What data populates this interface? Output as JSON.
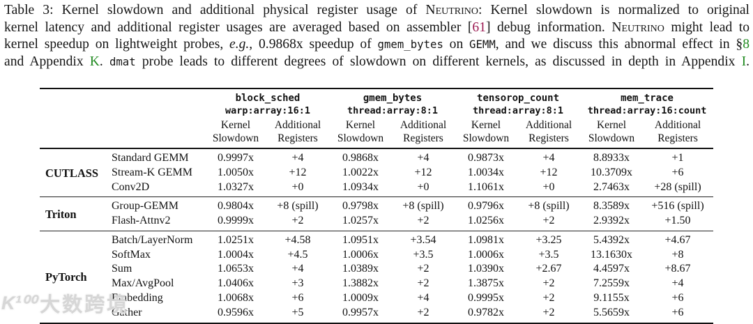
{
  "colors": {
    "citation": "#9c1a52",
    "reference": "#228B22"
  },
  "caption": {
    "lines": [
      [
        {
          "t": "Table 3: Kernel slowdown and additional physical register usage of ",
          "s": "plain"
        },
        {
          "t": "Neutrino",
          "s": "sc"
        },
        {
          "t": ": Kernel slowdown is normalized to original",
          "s": "plain"
        }
      ],
      [
        {
          "t": "kernel latency and additional register usages are averaged based on assembler [",
          "s": "plain"
        },
        {
          "t": "61",
          "s": "cite"
        },
        {
          "t": "] debug information. ",
          "s": "plain"
        },
        {
          "t": "Neutrino",
          "s": "sc"
        },
        {
          "t": " might lead to",
          "s": "plain"
        }
      ],
      [
        {
          "t": "kernel speedup on lightweight probes, ",
          "s": "plain"
        },
        {
          "t": "e.g.,",
          "s": "italic"
        },
        {
          "t": " 0.9868x speedup of ",
          "s": "plain"
        },
        {
          "t": "gmem_bytes",
          "s": "mono"
        },
        {
          "t": " on ",
          "s": "plain"
        },
        {
          "t": "GEMM",
          "s": "mono"
        },
        {
          "t": ", and we discuss this abnormal effect in §",
          "s": "plain"
        },
        {
          "t": "8",
          "s": "ref"
        }
      ],
      [
        {
          "t": "and Appendix ",
          "s": "plain"
        },
        {
          "t": "K",
          "s": "ref"
        },
        {
          "t": ". ",
          "s": "plain"
        },
        {
          "t": "dmat",
          "s": "mono"
        },
        {
          "t": " probe leads to different degrees of slowdown on different kernels, as discussed in depth in Appendix ",
          "s": "plain"
        },
        {
          "t": "I",
          "s": "ref"
        },
        {
          "t": ".",
          "s": "plain"
        }
      ]
    ]
  },
  "table": {
    "groups": [
      {
        "name": "block_sched",
        "config": "warp:array:16:1"
      },
      {
        "name": "gmem_bytes",
        "config": "thread:array:8:1"
      },
      {
        "name": "tensorop_count",
        "config": "thread:array:8:1"
      },
      {
        "name": "mem_trace",
        "config": "thread:array:16:count"
      }
    ],
    "metric_headers": [
      "Kernel\nSlowdown",
      "Additional\nRegisters"
    ],
    "sections": [
      {
        "name": "CUTLASS",
        "rows": [
          {
            "kernel": "Standard GEMM",
            "values": [
              "0.9997x",
              "+4",
              "0.9868x",
              "+4",
              "0.9873x",
              "+4",
              "8.8933x",
              "+1"
            ]
          },
          {
            "kernel": "Stream-K GEMM",
            "values": [
              "1.0050x",
              "+12",
              "1.0022x",
              "+12",
              "1.0034x",
              "+12",
              "10.3709x",
              "+6"
            ]
          },
          {
            "kernel": "Conv2D",
            "values": [
              "1.0327x",
              "+0",
              "1.0934x",
              "+0",
              "1.1061x",
              "+0",
              "2.7463x",
              "+28 (spill)"
            ]
          }
        ]
      },
      {
        "name": "Triton",
        "rows": [
          {
            "kernel": "Group-GEMM",
            "values": [
              "0.9804x",
              "+8 (spill)",
              "0.9798x",
              "+8 (spill)",
              "0.9796x",
              "+8 (spill)",
              "8.3589x",
              "+516 (spill)"
            ]
          },
          {
            "kernel": "Flash-Attnv2",
            "values": [
              "0.9999x",
              "+2",
              "1.0257x",
              "+2",
              "1.0256x",
              "+2",
              "2.9392x",
              "+1.50"
            ]
          }
        ]
      },
      {
        "name": "PyTorch",
        "rows": [
          {
            "kernel": "Batch/LayerNorm",
            "values": [
              "1.0251x",
              "+4.58",
              "1.0951x",
              "+3.54",
              "1.0981x",
              "+3.25",
              "5.4392x",
              "+4.67"
            ]
          },
          {
            "kernel": "SoftMax",
            "values": [
              "1.0004x",
              "+4.5",
              "1.0006x",
              "+3.5",
              "1.0006x",
              "+3.5",
              "13.1630x",
              "+8"
            ]
          },
          {
            "kernel": "Sum",
            "values": [
              "1.0653x",
              "+4",
              "1.0389x",
              "+2",
              "1.0390x",
              "+2.67",
              "4.4597x",
              "+8.67"
            ]
          },
          {
            "kernel": "Max/AvgPool",
            "values": [
              "1.0406x",
              "+3",
              "1.3882x",
              "+2",
              "1.3875x",
              "+2",
              "7.2559x",
              "+4"
            ]
          },
          {
            "kernel": "Embedding",
            "values": [
              "1.0068x",
              "+6",
              "1.0009x",
              "+4",
              "0.9995x",
              "+2",
              "9.1155x",
              "+6"
            ]
          },
          {
            "kernel": "Gather",
            "values": [
              "0.9596x",
              "+5",
              "0.9957x",
              "+2",
              "0.9782x",
              "+2",
              "5.5659x",
              "+6"
            ]
          }
        ]
      }
    ]
  },
  "watermark": {
    "logo": "K¹⁰⁰",
    "text": "大数跨境"
  }
}
